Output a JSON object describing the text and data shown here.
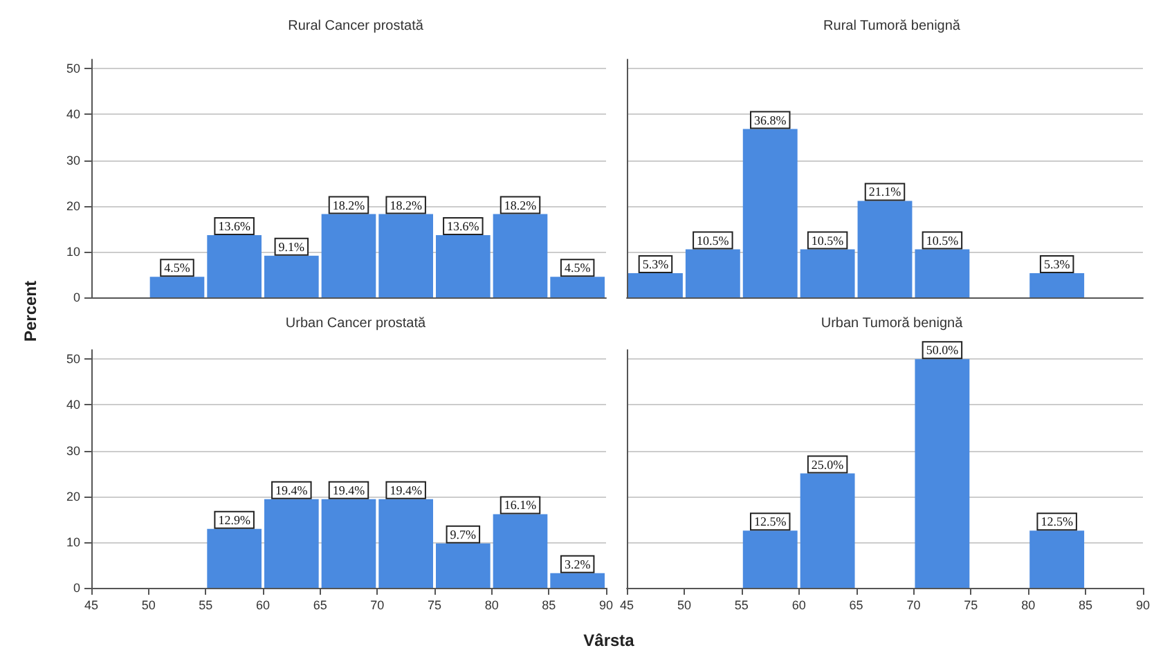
{
  "chart_data": [
    {
      "type": "histogram",
      "title": "Rural Cancer prostată",
      "ylabel": "Percent",
      "bins": [
        45,
        50,
        55,
        60,
        65,
        70,
        75,
        80,
        85,
        90
      ],
      "values": [
        0,
        4.5,
        13.6,
        9.1,
        18.2,
        18.2,
        13.6,
        18.2,
        4.5
      ],
      "value_labels": [
        null,
        "4.5%",
        "13.6%",
        "9.1%",
        "18.2%",
        "18.2%",
        "13.6%",
        "18.2%",
        "4.5%"
      ],
      "color": "#4a8ae0",
      "xlim": [
        45,
        90
      ],
      "xticks": [
        45,
        50,
        55,
        60,
        65,
        70,
        75,
        80,
        85,
        90
      ],
      "ylim": [
        0,
        52
      ],
      "yticks": [
        0,
        10,
        20,
        30,
        40,
        50
      ],
      "grid": "y",
      "tick_labels": "y"
    },
    {
      "type": "histogram",
      "title": "Rural Tumoră benignă",
      "bins": [
        45,
        50,
        55,
        60,
        65,
        70,
        75,
        80,
        85,
        90
      ],
      "values": [
        5.3,
        10.5,
        36.8,
        10.5,
        21.1,
        10.5,
        0,
        5.3,
        0
      ],
      "value_labels": [
        "5.3%",
        "10.5%",
        "36.8%",
        "10.5%",
        "21.1%",
        "10.5%",
        null,
        "5.3%",
        null
      ],
      "color": "#4a8ae0",
      "xlim": [
        45,
        90
      ],
      "xticks": [
        45,
        50,
        55,
        60,
        65,
        70,
        75,
        80,
        85,
        90
      ],
      "ylim": [
        0,
        52
      ],
      "yticks": [
        0,
        10,
        20,
        30,
        40,
        50
      ],
      "grid": "y",
      "tick_labels": false
    },
    {
      "type": "histogram",
      "title": "Urban Cancer prostată",
      "xlabel": "Vârsta",
      "bins": [
        45,
        50,
        55,
        60,
        65,
        70,
        75,
        80,
        85,
        90
      ],
      "values": [
        0,
        0,
        12.9,
        19.4,
        19.4,
        19.4,
        9.7,
        16.1,
        3.2
      ],
      "value_labels": [
        null,
        null,
        "12.9%",
        "19.4%",
        "19.4%",
        "19.4%",
        "9.7%",
        "16.1%",
        "3.2%"
      ],
      "color": "#4a8ae0",
      "xlim": [
        45,
        90
      ],
      "xticks": [
        45,
        50,
        55,
        60,
        65,
        70,
        75,
        80,
        85,
        90
      ],
      "ylim": [
        0,
        52
      ],
      "yticks": [
        0,
        10,
        20,
        30,
        40,
        50
      ],
      "grid": "y"
    },
    {
      "type": "histogram",
      "title": "Urban Tumoră benignă",
      "bins": [
        45,
        50,
        55,
        60,
        65,
        70,
        75,
        80,
        85,
        90
      ],
      "values": [
        0,
        0,
        12.5,
        25.0,
        0,
        50.0,
        0,
        12.5,
        0
      ],
      "value_labels": [
        null,
        null,
        "12.5%",
        "25.0%",
        null,
        "50.0%",
        null,
        "12.5%",
        null
      ],
      "color": "#4a8ae0",
      "xlim": [
        45,
        90
      ],
      "xticks": [
        45,
        50,
        55,
        60,
        65,
        70,
        75,
        80,
        85,
        90
      ],
      "ylim": [
        0,
        52
      ],
      "yticks": [
        0,
        10,
        20,
        30,
        40,
        50
      ],
      "grid": "y",
      "tick_labels": "x"
    }
  ]
}
